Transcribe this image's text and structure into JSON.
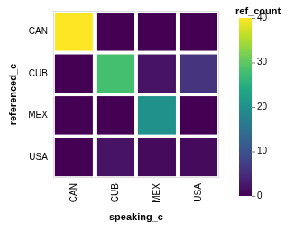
{
  "chart_data": {
    "type": "heatmap",
    "x_label": "speaking_c",
    "y_label": "referenced_c",
    "x": [
      "CAN",
      "CUB",
      "MEX",
      "USA"
    ],
    "y": [
      "CAN",
      "CUB",
      "MEX",
      "USA"
    ],
    "cells": [
      [
        40,
        0,
        0,
        0
      ],
      [
        0,
        28,
        2,
        6
      ],
      [
        0,
        0,
        20,
        0
      ],
      [
        0,
        2,
        1,
        1
      ]
    ],
    "color_label": "ref_count",
    "color_range": [
      0,
      40
    ],
    "color_ticks": [
      0,
      10,
      20,
      30,
      40
    ]
  }
}
